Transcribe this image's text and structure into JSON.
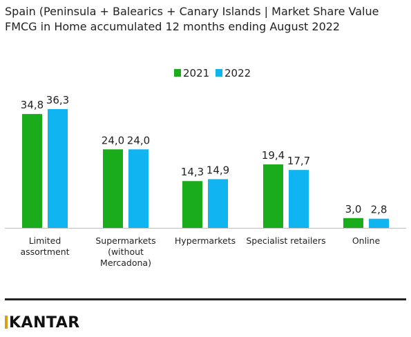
{
  "chart_data": {
    "type": "bar",
    "title": "Spain (Peninsula + Balearics + Canary Islands | Market Share Value",
    "subtitle": "FMCG in Home accumulated 12 months ending August 2022",
    "categories": [
      "Limited assortment",
      "Supermarkets (without Mercadona)",
      "Hypermarkets",
      "Specialist retailers",
      "Online"
    ],
    "category_lines": [
      [
        "Limited",
        "assortment"
      ],
      [
        "Supermarkets",
        "(without",
        "Mercadona)"
      ],
      [
        "Hypermarkets"
      ],
      [
        "Specialist retailers"
      ],
      [
        "Online"
      ]
    ],
    "series": [
      {
        "name": "2021",
        "color": "#1aac1a",
        "values": [
          34.8,
          24.0,
          14.3,
          19.4,
          3.0
        ],
        "labels": [
          "34,8",
          "24,0",
          "14,3",
          "19,4",
          "3,0"
        ]
      },
      {
        "name": "2022",
        "color": "#0fb4f0",
        "values": [
          36.3,
          24.0,
          14.9,
          17.7,
          2.8
        ],
        "labels": [
          "36,3",
          "24,0",
          "14,9",
          "17,7",
          "2,8"
        ]
      }
    ],
    "ylim": [
      0,
      38
    ],
    "legend": "top-center",
    "grid": false
  },
  "brand": {
    "logo_text": "KANTAR",
    "accent": "#d4a017"
  }
}
